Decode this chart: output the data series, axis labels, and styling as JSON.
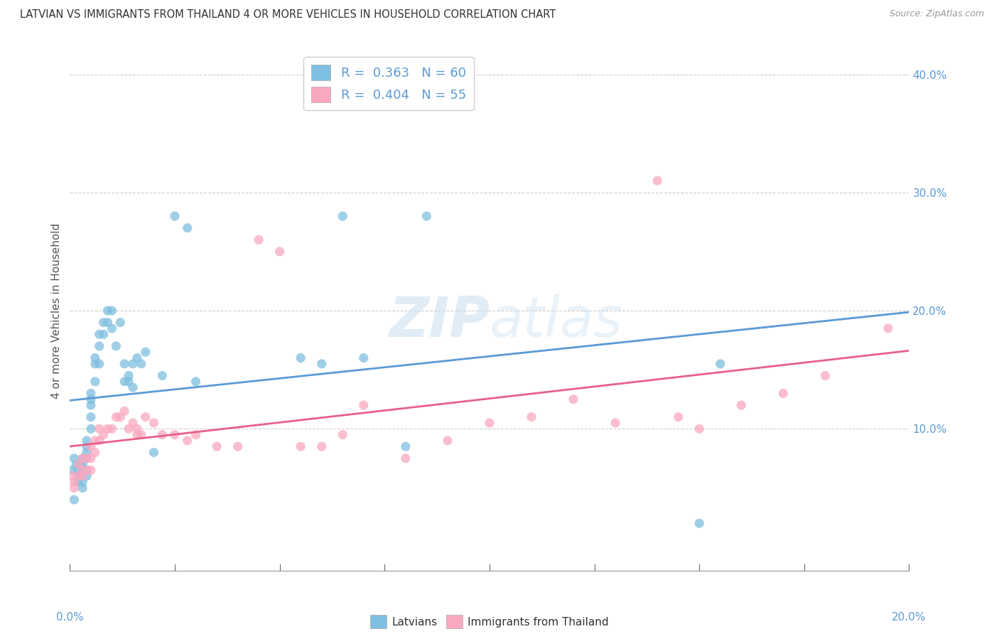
{
  "title": "LATVIAN VS IMMIGRANTS FROM THAILAND 4 OR MORE VEHICLES IN HOUSEHOLD CORRELATION CHART",
  "source": "Source: ZipAtlas.com",
  "ylabel": "4 or more Vehicles in Household",
  "xlim": [
    0.0,
    0.2
  ],
  "ylim": [
    -0.02,
    0.42
  ],
  "right_y_ticks": [
    0.1,
    0.2,
    0.3,
    0.4
  ],
  "legend_latvians": "Latvians",
  "legend_thai": "Immigrants from Thailand",
  "R_latvians": 0.363,
  "N_latvians": 60,
  "R_thai": 0.404,
  "N_thai": 55,
  "blue_color": "#7fbfdf",
  "pink_color": "#f9a8c0",
  "blue_line_color": "#5b9bd5",
  "pink_line_color": "#e8608a",
  "gray_dash_color": "#aaaaaa",
  "tick_label_color": "#5b9bd5",
  "watermark_color": "#c8dff0",
  "latvians_x": [
    0.0005,
    0.001,
    0.001,
    0.0015,
    0.002,
    0.002,
    0.002,
    0.0025,
    0.003,
    0.003,
    0.003,
    0.003,
    0.003,
    0.004,
    0.004,
    0.004,
    0.004,
    0.004,
    0.004,
    0.005,
    0.005,
    0.005,
    0.005,
    0.005,
    0.006,
    0.006,
    0.006,
    0.007,
    0.007,
    0.007,
    0.008,
    0.008,
    0.009,
    0.009,
    0.01,
    0.01,
    0.011,
    0.012,
    0.013,
    0.013,
    0.014,
    0.014,
    0.015,
    0.015,
    0.016,
    0.017,
    0.018,
    0.02,
    0.022,
    0.025,
    0.028,
    0.03,
    0.055,
    0.06,
    0.065,
    0.07,
    0.08,
    0.085,
    0.15,
    0.155
  ],
  "latvians_y": [
    0.065,
    0.04,
    0.075,
    0.07,
    0.065,
    0.06,
    0.055,
    0.07,
    0.075,
    0.07,
    0.065,
    0.055,
    0.05,
    0.09,
    0.085,
    0.08,
    0.075,
    0.065,
    0.06,
    0.13,
    0.125,
    0.12,
    0.11,
    0.1,
    0.16,
    0.155,
    0.14,
    0.18,
    0.17,
    0.155,
    0.19,
    0.18,
    0.2,
    0.19,
    0.2,
    0.185,
    0.17,
    0.19,
    0.155,
    0.14,
    0.14,
    0.145,
    0.155,
    0.135,
    0.16,
    0.155,
    0.165,
    0.08,
    0.145,
    0.28,
    0.27,
    0.14,
    0.16,
    0.155,
    0.28,
    0.16,
    0.085,
    0.28,
    0.02,
    0.155
  ],
  "thai_x": [
    0.0005,
    0.001,
    0.001,
    0.002,
    0.002,
    0.003,
    0.003,
    0.003,
    0.004,
    0.004,
    0.005,
    0.005,
    0.005,
    0.006,
    0.006,
    0.007,
    0.007,
    0.008,
    0.009,
    0.01,
    0.011,
    0.012,
    0.013,
    0.014,
    0.015,
    0.016,
    0.016,
    0.017,
    0.018,
    0.02,
    0.022,
    0.025,
    0.028,
    0.03,
    0.035,
    0.04,
    0.045,
    0.05,
    0.055,
    0.06,
    0.065,
    0.07,
    0.08,
    0.09,
    0.1,
    0.11,
    0.12,
    0.13,
    0.14,
    0.145,
    0.15,
    0.16,
    0.17,
    0.18,
    0.195
  ],
  "thai_y": [
    0.06,
    0.055,
    0.05,
    0.07,
    0.06,
    0.075,
    0.065,
    0.06,
    0.075,
    0.065,
    0.085,
    0.075,
    0.065,
    0.09,
    0.08,
    0.1,
    0.09,
    0.095,
    0.1,
    0.1,
    0.11,
    0.11,
    0.115,
    0.1,
    0.105,
    0.1,
    0.095,
    0.095,
    0.11,
    0.105,
    0.095,
    0.095,
    0.09,
    0.095,
    0.085,
    0.085,
    0.26,
    0.25,
    0.085,
    0.085,
    0.095,
    0.12,
    0.075,
    0.09,
    0.105,
    0.11,
    0.125,
    0.105,
    0.31,
    0.11,
    0.1,
    0.12,
    0.13,
    0.145,
    0.185
  ]
}
